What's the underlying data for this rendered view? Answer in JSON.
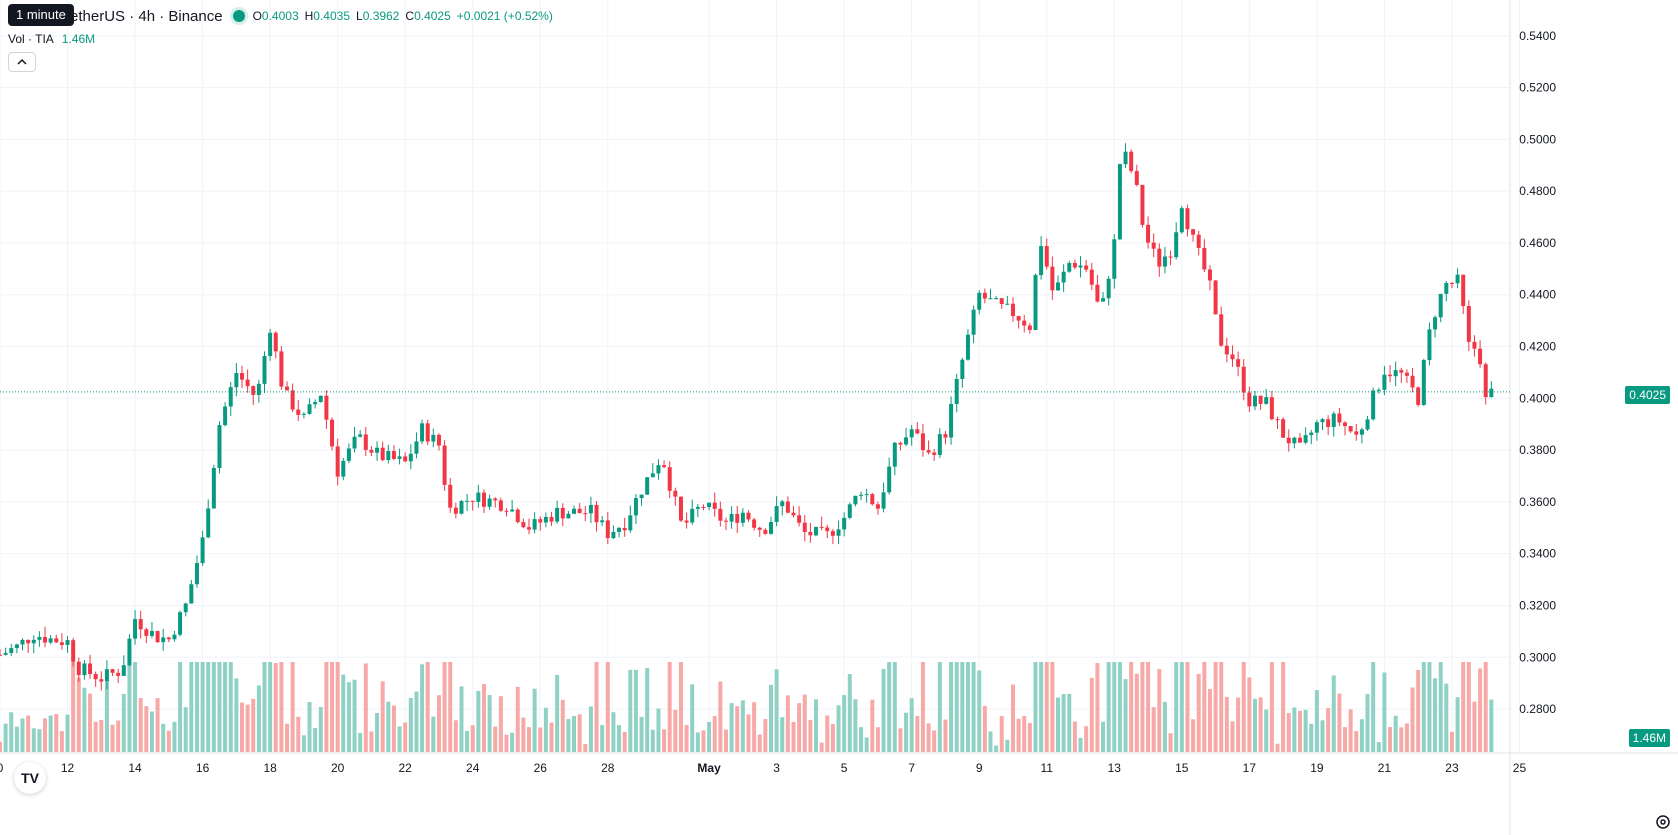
{
  "header": {
    "tooltip": "1 minute",
    "symbol": "etherUS · 4h · Binance",
    "ohlc": {
      "o_label": "O",
      "o": "0.4003",
      "h_label": "H",
      "h": "0.4035",
      "l_label": "L",
      "l": "0.3962",
      "c_label": "C",
      "c": "0.4025",
      "change": "+0.0021 (+0.52%)"
    }
  },
  "volume_legend": {
    "label": "Vol · TIA",
    "value": "1.46M"
  },
  "price_tag": "0.4025",
  "volume_tag": "1.46M",
  "logo_text": "TV",
  "colors": {
    "up": "#089981",
    "down": "#f23645",
    "up_vol": "#8fd1c4",
    "down_vol": "#f7a9a7",
    "grid": "#f0f3fa",
    "text": "#131722"
  },
  "chart_data": {
    "type": "candlestick",
    "title": "",
    "timeframe": "4h",
    "y_axis": {
      "ticks": [
        "0.5400",
        "0.5200",
        "0.5000",
        "0.4800",
        "0.4600",
        "0.4400",
        "0.4200",
        "0.4000",
        "0.3800",
        "0.3600",
        "0.3400",
        "0.3200",
        "0.3000",
        "0.2800"
      ],
      "range": [
        0.275,
        0.543
      ],
      "last_price": 0.4025
    },
    "x_axis": {
      "ticks": [
        "0",
        "12",
        "14",
        "16",
        "18",
        "20",
        "22",
        "24",
        "26",
        "28",
        "May",
        "3",
        "5",
        "7",
        "9",
        "11",
        "13",
        "15",
        "17",
        "19",
        "21",
        "23",
        "25"
      ],
      "tick_days": [
        10,
        12,
        14,
        16,
        18,
        20,
        22,
        24,
        26,
        28,
        31,
        33,
        35,
        37,
        39,
        41,
        43,
        45,
        47,
        49,
        51,
        53,
        55
      ],
      "day_range": [
        10.0,
        56.2
      ]
    },
    "anchors": [
      {
        "day": 10.0,
        "price": 0.301
      },
      {
        "day": 10.5,
        "price": 0.304
      },
      {
        "day": 11.0,
        "price": 0.309
      },
      {
        "day": 11.5,
        "price": 0.307
      },
      {
        "day": 12.0,
        "price": 0.306
      },
      {
        "day": 12.3,
        "price": 0.296
      },
      {
        "day": 13.0,
        "price": 0.292
      },
      {
        "day": 13.6,
        "price": 0.295
      },
      {
        "day": 14.0,
        "price": 0.315
      },
      {
        "day": 14.6,
        "price": 0.308
      },
      {
        "day": 15.0,
        "price": 0.307
      },
      {
        "day": 15.5,
        "price": 0.32
      },
      {
        "day": 16.0,
        "price": 0.345
      },
      {
        "day": 16.5,
        "price": 0.39
      },
      {
        "day": 17.0,
        "price": 0.41
      },
      {
        "day": 17.6,
        "price": 0.4
      },
      {
        "day": 18.0,
        "price": 0.428
      },
      {
        "day": 18.4,
        "price": 0.402
      },
      {
        "day": 19.0,
        "price": 0.392
      },
      {
        "day": 19.5,
        "price": 0.402
      },
      {
        "day": 20.0,
        "price": 0.372
      },
      {
        "day": 20.6,
        "price": 0.385
      },
      {
        "day": 21.2,
        "price": 0.378
      },
      {
        "day": 22.0,
        "price": 0.375
      },
      {
        "day": 22.5,
        "price": 0.388
      },
      {
        "day": 23.0,
        "price": 0.382
      },
      {
        "day": 23.3,
        "price": 0.357
      },
      {
        "day": 24.0,
        "price": 0.362
      },
      {
        "day": 25.0,
        "price": 0.359
      },
      {
        "day": 25.7,
        "price": 0.35
      },
      {
        "day": 26.5,
        "price": 0.356
      },
      {
        "day": 27.5,
        "price": 0.356
      },
      {
        "day": 28.0,
        "price": 0.348
      },
      {
        "day": 28.5,
        "price": 0.352
      },
      {
        "day": 29.0,
        "price": 0.365
      },
      {
        "day": 29.6,
        "price": 0.378
      },
      {
        "day": 30.2,
        "price": 0.35
      },
      {
        "day": 30.8,
        "price": 0.359
      },
      {
        "day": 31.5,
        "price": 0.352
      },
      {
        "day": 32.0,
        "price": 0.356
      },
      {
        "day": 32.6,
        "price": 0.349
      },
      {
        "day": 33.2,
        "price": 0.36
      },
      {
        "day": 33.8,
        "price": 0.348
      },
      {
        "day": 34.5,
        "price": 0.347
      },
      {
        "day": 35.0,
        "price": 0.354
      },
      {
        "day": 35.5,
        "price": 0.365
      },
      {
        "day": 36.0,
        "price": 0.358
      },
      {
        "day": 36.5,
        "price": 0.38
      },
      {
        "day": 37.0,
        "price": 0.388
      },
      {
        "day": 37.5,
        "price": 0.378
      },
      {
        "day": 38.0,
        "price": 0.387
      },
      {
        "day": 38.6,
        "price": 0.42
      },
      {
        "day": 39.0,
        "price": 0.44
      },
      {
        "day": 39.6,
        "price": 0.435
      },
      {
        "day": 40.0,
        "price": 0.433
      },
      {
        "day": 40.5,
        "price": 0.428
      },
      {
        "day": 40.8,
        "price": 0.462
      },
      {
        "day": 41.2,
        "price": 0.44
      },
      {
        "day": 41.7,
        "price": 0.453
      },
      {
        "day": 42.2,
        "price": 0.45
      },
      {
        "day": 42.6,
        "price": 0.432
      },
      {
        "day": 43.0,
        "price": 0.46
      },
      {
        "day": 43.2,
        "price": 0.497
      },
      {
        "day": 43.6,
        "price": 0.485
      },
      {
        "day": 43.9,
        "price": 0.463
      },
      {
        "day": 44.3,
        "price": 0.452
      },
      {
        "day": 44.7,
        "price": 0.458
      },
      {
        "day": 45.0,
        "price": 0.476
      },
      {
        "day": 45.3,
        "price": 0.462
      },
      {
        "day": 45.8,
        "price": 0.445
      },
      {
        "day": 46.1,
        "price": 0.423
      },
      {
        "day": 46.5,
        "price": 0.416
      },
      {
        "day": 47.0,
        "price": 0.399
      },
      {
        "day": 47.5,
        "price": 0.398
      },
      {
        "day": 48.0,
        "price": 0.386
      },
      {
        "day": 48.5,
        "price": 0.38
      },
      {
        "day": 49.0,
        "price": 0.39
      },
      {
        "day": 49.6,
        "price": 0.392
      },
      {
        "day": 50.2,
        "price": 0.385
      },
      {
        "day": 50.6,
        "price": 0.398
      },
      {
        "day": 51.0,
        "price": 0.411
      },
      {
        "day": 51.5,
        "price": 0.409
      },
      {
        "day": 52.0,
        "price": 0.4
      },
      {
        "day": 52.4,
        "price": 0.43
      },
      {
        "day": 52.8,
        "price": 0.444
      },
      {
        "day": 53.2,
        "price": 0.445
      },
      {
        "day": 53.5,
        "price": 0.42
      },
      {
        "day": 53.8,
        "price": 0.419
      },
      {
        "day": 54.0,
        "price": 0.399
      },
      {
        "day": 54.2,
        "price": 0.4025
      }
    ],
    "volume_max_m": 5.6
  }
}
